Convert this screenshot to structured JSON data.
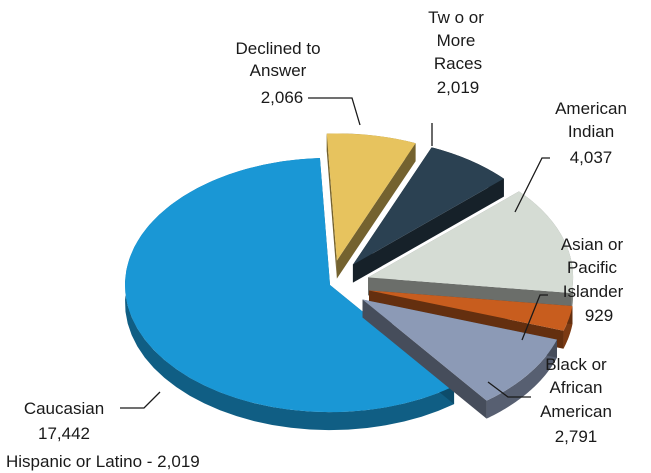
{
  "chart_data": {
    "type": "pie",
    "title": "",
    "slices": [
      {
        "category": "Declined to Answer",
        "label_lines": [
          "Declined to",
          "Answer"
        ],
        "value": 2066,
        "value_label": "2,066",
        "color": "#E7C35E",
        "exploded": true
      },
      {
        "category": "Two or More Races",
        "label_lines": [
          "Tw o or",
          "More",
          "Races"
        ],
        "value": 2019,
        "value_label": "2,019",
        "color": "#2B4152",
        "exploded": true
      },
      {
        "category": "American Indian",
        "label_lines": [
          "American",
          "Indian"
        ],
        "value": 4037,
        "value_label": "4,037",
        "color": "#D5DCD4",
        "exploded": true
      },
      {
        "category": "Asian or Pacific Islander",
        "label_lines": [
          "Asian or",
          "Pacific",
          "Islander"
        ],
        "value": 929,
        "value_label": "929",
        "color": "#C85D1E",
        "exploded": true
      },
      {
        "category": "Black or African American",
        "label_lines": [
          "Black or",
          "African",
          "American"
        ],
        "value": 2791,
        "value_label": "2,791",
        "color": "#8C9AB6",
        "exploded": true
      },
      {
        "category": "Caucasian",
        "label_lines": [
          "Caucasian"
        ],
        "value": 17442,
        "value_label": "17,442",
        "color": "#1A97D5",
        "exploded": false
      }
    ],
    "legend": "none",
    "footnote": "Hispanic or Latino - 2,019"
  }
}
